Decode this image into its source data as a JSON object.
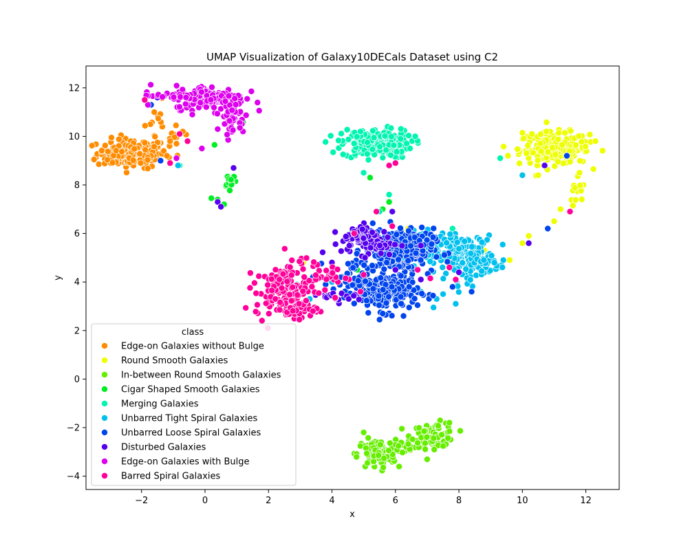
{
  "chart_data": {
    "type": "scatter",
    "title": "UMAP Visualization of Galaxy10DECals Dataset using C2",
    "xlabel": "x",
    "ylabel": "y",
    "xlim": [
      -3.75,
      13.05
    ],
    "ylim": [
      -4.55,
      12.9
    ],
    "xticks": [
      -2,
      0,
      2,
      4,
      6,
      8,
      10,
      12
    ],
    "yticks": [
      -4,
      -2,
      0,
      2,
      4,
      6,
      8,
      10,
      12
    ],
    "grid": false,
    "legend": {
      "title": "class",
      "placement": "lower-left"
    },
    "series": [
      {
        "name": "Edge-on Galaxies without Bulge",
        "color": "#ff8c00",
        "clusters": [
          {
            "cx": -2.3,
            "cy": 9.3,
            "sx": 0.55,
            "sy": 0.3,
            "n": 180
          },
          {
            "cx": -1.55,
            "cy": 10.3,
            "sx": 0.25,
            "sy": 0.55,
            "n": 18
          },
          {
            "cx": -0.9,
            "cy": 10.0,
            "sx": 0.25,
            "sy": 0.2,
            "n": 6
          }
        ],
        "points": [
          [
            -1.1,
            9.8
          ],
          [
            -0.9,
            9.7
          ],
          [
            -1.3,
            9.4
          ],
          [
            -0.7,
            10.2
          ],
          [
            -1.6,
            11.0
          ],
          [
            -1.2,
            9.2
          ]
        ]
      },
      {
        "name": "Round Smooth Galaxies",
        "color": "#eeff00",
        "clusters": [
          {
            "cx": 11.0,
            "cy": 9.5,
            "sx": 0.55,
            "sy": 0.33,
            "n": 220
          },
          {
            "cx": 11.7,
            "cy": 7.5,
            "sx": 0.15,
            "sy": 0.35,
            "n": 14
          }
        ],
        "points": [
          [
            10.3,
            10.1
          ],
          [
            10.0,
            10.15
          ],
          [
            11.2,
            7.0
          ],
          [
            11.0,
            6.5
          ],
          [
            11.5,
            6.9
          ],
          [
            10.0,
            5.6
          ],
          [
            10.2,
            5.9
          ],
          [
            9.6,
            4.9
          ],
          [
            3.1,
            4.8
          ],
          [
            6.4,
            6.2
          ],
          [
            6.2,
            6.1
          ],
          [
            7.0,
            6.1
          ],
          [
            8.8,
            5.3
          ],
          [
            12.3,
            9.8
          ],
          [
            11.8,
            8.5
          ],
          [
            10.5,
            8.4
          ]
        ]
      },
      {
        "name": "In-between Round Smooth Galaxies",
        "color": "#66ee00",
        "clusters": [
          {
            "cx": 7.2,
            "cy": -2.3,
            "sx": 0.35,
            "sy": 0.25,
            "n": 90
          },
          {
            "cx": 5.4,
            "cy": -3.1,
            "sx": 0.3,
            "sy": 0.3,
            "n": 100
          },
          {
            "cx": 6.3,
            "cy": -2.8,
            "sx": 0.3,
            "sy": 0.15,
            "n": 18
          }
        ],
        "points": [
          [
            7.7,
            -1.8
          ],
          [
            5.0,
            -2.2
          ]
        ]
      },
      {
        "name": "Cigar Shaped Smooth Galaxies",
        "color": "#00ee22",
        "clusters": [
          {
            "cx": 0.8,
            "cy": 8.2,
            "sx": 0.1,
            "sy": 0.15,
            "n": 18
          }
        ],
        "points": [
          [
            0.4,
            7.4
          ],
          [
            0.2,
            7.45
          ],
          [
            0.3,
            9.65
          ],
          [
            1.2,
            10.6
          ],
          [
            4.8,
            4.5
          ],
          [
            5.8,
            7.3
          ],
          [
            5.6,
            7.0
          ],
          [
            5.2,
            8.3
          ],
          [
            0.6,
            7.2
          ]
        ]
      },
      {
        "name": "Merging Galaxies",
        "color": "#00f5b0",
        "clusters": [
          {
            "cx": 5.4,
            "cy": 9.7,
            "sx": 0.55,
            "sy": 0.3,
            "n": 200
          }
        ],
        "points": [
          [
            5.8,
            7.6
          ],
          [
            5.5,
            6.9
          ],
          [
            -0.8,
            8.8
          ],
          [
            4.9,
            10.2
          ],
          [
            9.3,
            9.1
          ],
          [
            5.0,
            8.5
          ],
          [
            2.9,
            3.9
          ],
          [
            4.6,
            6.0
          ],
          [
            5.2,
            4.0
          ],
          [
            7.8,
            6.2
          ]
        ]
      },
      {
        "name": "Unbarred Tight Spiral Galaxies",
        "color": "#00c0ee",
        "clusters": [
          {
            "cx": 8.2,
            "cy": 5.0,
            "sx": 0.45,
            "sy": 0.45,
            "n": 180
          },
          {
            "cx": 7.2,
            "cy": 5.5,
            "sx": 0.45,
            "sy": 0.3,
            "n": 70
          },
          {
            "cx": 9.1,
            "cy": 4.8,
            "sx": 0.3,
            "sy": 0.12,
            "n": 18
          }
        ],
        "points": [
          [
            7.5,
            3.5
          ],
          [
            7.3,
            3.3
          ],
          [
            7.2,
            2.95
          ],
          [
            7.9,
            3.1
          ],
          [
            -0.85,
            8.8
          ],
          [
            3.3,
            3.3
          ],
          [
            4.0,
            4.0
          ],
          [
            6.8,
            3.6
          ],
          [
            9.4,
            4.9
          ],
          [
            10.0,
            8.4
          ]
        ]
      },
      {
        "name": "Unbarred Loose Spiral Galaxies",
        "color": "#0044ee",
        "clusters": [
          {
            "cx": 5.7,
            "cy": 3.6,
            "sx": 0.5,
            "sy": 0.4,
            "n": 230
          },
          {
            "cx": 6.1,
            "cy": 5.3,
            "sx": 0.55,
            "sy": 0.45,
            "n": 200
          },
          {
            "cx": 4.7,
            "cy": 4.2,
            "sx": 0.4,
            "sy": 0.35,
            "n": 40
          }
        ],
        "points": [
          [
            -1.7,
            11.3
          ],
          [
            -1.1,
            8.9
          ],
          [
            -1.4,
            9.0
          ],
          [
            3.4,
            4.2
          ],
          [
            3.8,
            3.9
          ],
          [
            7.8,
            3.8
          ],
          [
            8.4,
            3.6
          ],
          [
            10.8,
            6.2
          ],
          [
            11.4,
            9.2
          ],
          [
            5.6,
            2.7
          ],
          [
            5.5,
            2.45
          ]
        ]
      },
      {
        "name": "Disturbed Galaxies",
        "color": "#5500ee",
        "clusters": [
          {
            "cx": 5.2,
            "cy": 5.6,
            "sx": 0.45,
            "sy": 0.25,
            "n": 60
          },
          {
            "cx": 4.9,
            "cy": 6.0,
            "sx": 0.25,
            "sy": 0.2,
            "n": 25
          },
          {
            "cx": 4.4,
            "cy": 3.4,
            "sx": 0.35,
            "sy": 0.12,
            "n": 18
          }
        ],
        "points": [
          [
            0.4,
            7.3
          ],
          [
            0.5,
            7.1
          ],
          [
            0.9,
            8.7
          ],
          [
            -1.5,
            11.6
          ],
          [
            5.9,
            6.9
          ],
          [
            6.8,
            4.1
          ],
          [
            10.7,
            8.8
          ],
          [
            10.2,
            5.6
          ],
          [
            6.0,
            4.5
          ],
          [
            6.8,
            5.5
          ],
          [
            8.0,
            4.4
          ],
          [
            4.0,
            4.8
          ],
          [
            3.6,
            2.8
          ]
        ]
      },
      {
        "name": "Edge-on Galaxies with Bulge",
        "color": "#dd00ee",
        "clusters": [
          {
            "cx": 0.15,
            "cy": 11.6,
            "sx": 0.55,
            "sy": 0.25,
            "n": 160
          },
          {
            "cx": 0.85,
            "cy": 10.8,
            "sx": 0.2,
            "sy": 0.35,
            "n": 40
          },
          {
            "cx": -1.2,
            "cy": 11.65,
            "sx": 0.45,
            "sy": 0.08,
            "n": 20
          }
        ],
        "points": [
          [
            1.1,
            10.35
          ],
          [
            -0.4,
            10.9
          ],
          [
            -0.1,
            9.5
          ],
          [
            0.4,
            10.3
          ],
          [
            -0.9,
            9.1
          ],
          [
            -1.8,
            11.3
          ]
        ]
      },
      {
        "name": "Barred Spiral Galaxies",
        "color": "#ff0099",
        "clusters": [
          {
            "cx": 2.4,
            "cy": 3.6,
            "sx": 0.4,
            "sy": 0.5,
            "n": 130
          },
          {
            "cx": 2.9,
            "cy": 2.9,
            "sx": 0.3,
            "sy": 0.2,
            "n": 45
          },
          {
            "cx": 3.5,
            "cy": 4.3,
            "sx": 0.5,
            "sy": 0.3,
            "n": 40
          }
        ],
        "points": [
          [
            -1.9,
            11.5
          ],
          [
            -0.8,
            10.1
          ],
          [
            -0.55,
            9.8
          ],
          [
            4.7,
            6.0
          ],
          [
            5.4,
            6.9
          ],
          [
            5.9,
            6.3
          ],
          [
            6.0,
            8.9
          ],
          [
            5.8,
            8.8
          ],
          [
            7.7,
            4.6
          ],
          [
            7.1,
            4.15
          ],
          [
            7.9,
            4.1
          ],
          [
            3.4,
            2.8
          ],
          [
            4.1,
            3.35
          ],
          [
            -1.1,
            8.9
          ],
          [
            11.5,
            6.9
          ],
          [
            6.7,
            4.5
          ],
          [
            5.0,
            4.3
          ],
          [
            4.9,
            3.6
          ]
        ]
      }
    ]
  }
}
